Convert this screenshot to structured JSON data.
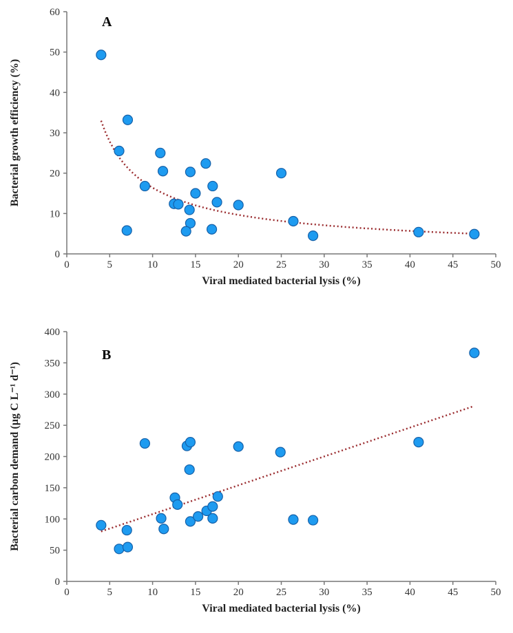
{
  "chart_data": [
    {
      "type": "scatter",
      "panel_label": "A",
      "xlabel": "Viral mediated bacterial lysis (%)",
      "ylabel": "Bacterial growth efficiency (%)",
      "xlim": [
        0,
        50
      ],
      "ylim": [
        0,
        60
      ],
      "xticks": [
        "0",
        "5",
        "10",
        "15",
        "20",
        "25",
        "30",
        "35",
        "40",
        "45",
        "50"
      ],
      "yticks": [
        "0",
        "10",
        "20",
        "30",
        "40",
        "50",
        "60"
      ],
      "grid": false,
      "marker_color": "#1E9BF0",
      "trend_color": "#9B2D30",
      "trendline": {
        "type": "power",
        "a": 95,
        "b": -0.763,
        "x_range": [
          4,
          47.5
        ]
      },
      "points": [
        [
          4,
          49.3
        ],
        [
          7.1,
          33.2
        ],
        [
          6.1,
          25.5
        ],
        [
          10.9,
          25
        ],
        [
          11.2,
          20.5
        ],
        [
          14.4,
          20.3
        ],
        [
          16.2,
          22.4
        ],
        [
          9.1,
          16.8
        ],
        [
          17,
          16.8
        ],
        [
          15,
          15
        ],
        [
          12.5,
          12.4
        ],
        [
          13,
          12.3
        ],
        [
          17.5,
          12.8
        ],
        [
          20,
          12.1
        ],
        [
          14.3,
          10.9
        ],
        [
          14.4,
          7.6
        ],
        [
          16.9,
          6.1
        ],
        [
          13.9,
          5.6
        ],
        [
          7,
          5.8
        ],
        [
          25,
          20
        ],
        [
          26.4,
          8.1
        ],
        [
          28.7,
          4.5
        ],
        [
          41,
          5.4
        ],
        [
          47.5,
          4.9
        ]
      ]
    },
    {
      "type": "scatter",
      "panel_label": "B",
      "xlabel": "Viral mediated bacterial lysis (%)",
      "ylabel": "Bacterial carbon demand (µg C L⁻¹ d⁻¹)",
      "xlim": [
        0,
        50
      ],
      "ylim": [
        0,
        400
      ],
      "xticks": [
        "0",
        "5",
        "10",
        "15",
        "20",
        "25",
        "30",
        "35",
        "40",
        "45",
        "50"
      ],
      "yticks": [
        "0",
        "50",
        "100",
        "150",
        "200",
        "250",
        "300",
        "350",
        "400"
      ],
      "grid": false,
      "marker_color": "#1E9BF0",
      "trend_color": "#9B2D30",
      "trendline": {
        "type": "linear",
        "slope": 4.62,
        "intercept": 61.5,
        "x_range": [
          4,
          47.5
        ]
      },
      "points": [
        [
          4,
          90
        ],
        [
          6.1,
          52
        ],
        [
          7.1,
          55
        ],
        [
          7,
          82
        ],
        [
          9.1,
          221
        ],
        [
          11,
          101
        ],
        [
          11.3,
          84
        ],
        [
          12.6,
          134
        ],
        [
          12.9,
          123
        ],
        [
          14,
          217
        ],
        [
          14.4,
          223
        ],
        [
          14.3,
          179
        ],
        [
          14.4,
          96
        ],
        [
          15.3,
          104
        ],
        [
          16.3,
          113
        ],
        [
          17,
          120
        ],
        [
          17,
          101
        ],
        [
          17.6,
          136
        ],
        [
          20,
          216
        ],
        [
          24.9,
          207
        ],
        [
          26.4,
          99
        ],
        [
          28.7,
          98
        ],
        [
          41,
          223
        ],
        [
          47.5,
          366
        ]
      ]
    }
  ]
}
